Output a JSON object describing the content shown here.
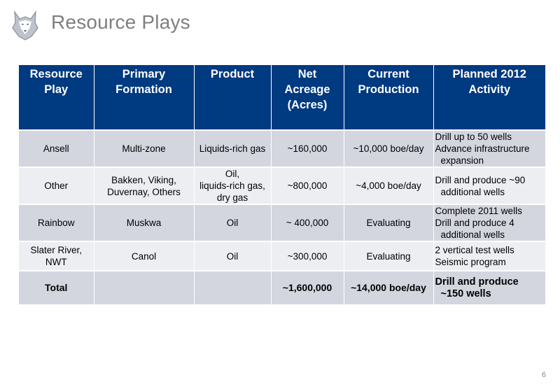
{
  "header": {
    "title": "Resource Plays"
  },
  "table": {
    "columns": [
      "Resource Play",
      "Primary Formation",
      "Product",
      "Net Acreage (Acres)",
      "Current Production",
      "Planned 2012 Activity"
    ],
    "col_lines": [
      [
        "Resource",
        "Play"
      ],
      [
        "Primary",
        "Formation"
      ],
      [
        "Product"
      ],
      [
        "Net",
        "Acreage",
        "(Acres)"
      ],
      [
        "Current",
        "Production"
      ],
      [
        "Planned 2012",
        "Activity"
      ]
    ],
    "rows": [
      {
        "play": "Ansell",
        "formation": "Multi-zone",
        "product": "Liquids-rich gas",
        "acreage": "~160,000",
        "production": "~10,000 boe/day",
        "activity": [
          "Drill up to 50 wells",
          "Advance  infrastructure",
          "expansion"
        ]
      },
      {
        "play": "Other",
        "formation_lines": [
          "Bakken, Viking,",
          "Duvernay, Others"
        ],
        "product_lines": [
          "Oil,",
          "liquids-rich gas,",
          "dry gas"
        ],
        "acreage": "~800,000",
        "production": "~4,000 boe/day",
        "activity": [
          "Drill and produce ~90",
          "additional wells"
        ]
      },
      {
        "play": "Rainbow",
        "formation": "Muskwa",
        "product": "Oil",
        "acreage": "~ 400,000",
        "production": "Evaluating",
        "activity": [
          "Complete 2011 wells",
          "Drill and produce 4",
          "additional wells"
        ]
      },
      {
        "play_lines": [
          "Slater River,",
          "NWT"
        ],
        "formation": "Canol",
        "product": "Oil",
        "acreage": "~300,000",
        "production": "Evaluating",
        "activity": [
          "2 vertical test wells",
          "Seismic program"
        ]
      }
    ],
    "total": {
      "label": "Total",
      "acreage": "~1,600,000",
      "production": "~14,000 boe/day",
      "activity": [
        "Drill and produce",
        "~150 wells"
      ]
    }
  },
  "footer": {
    "page_number": "6"
  },
  "logo": {
    "icon": "husky-dog-logo-icon"
  },
  "colors": {
    "header_bg": "#003a80",
    "row_shade": "#d4d6df",
    "row_light": "#eceef2",
    "title": "#7f7f7f"
  }
}
